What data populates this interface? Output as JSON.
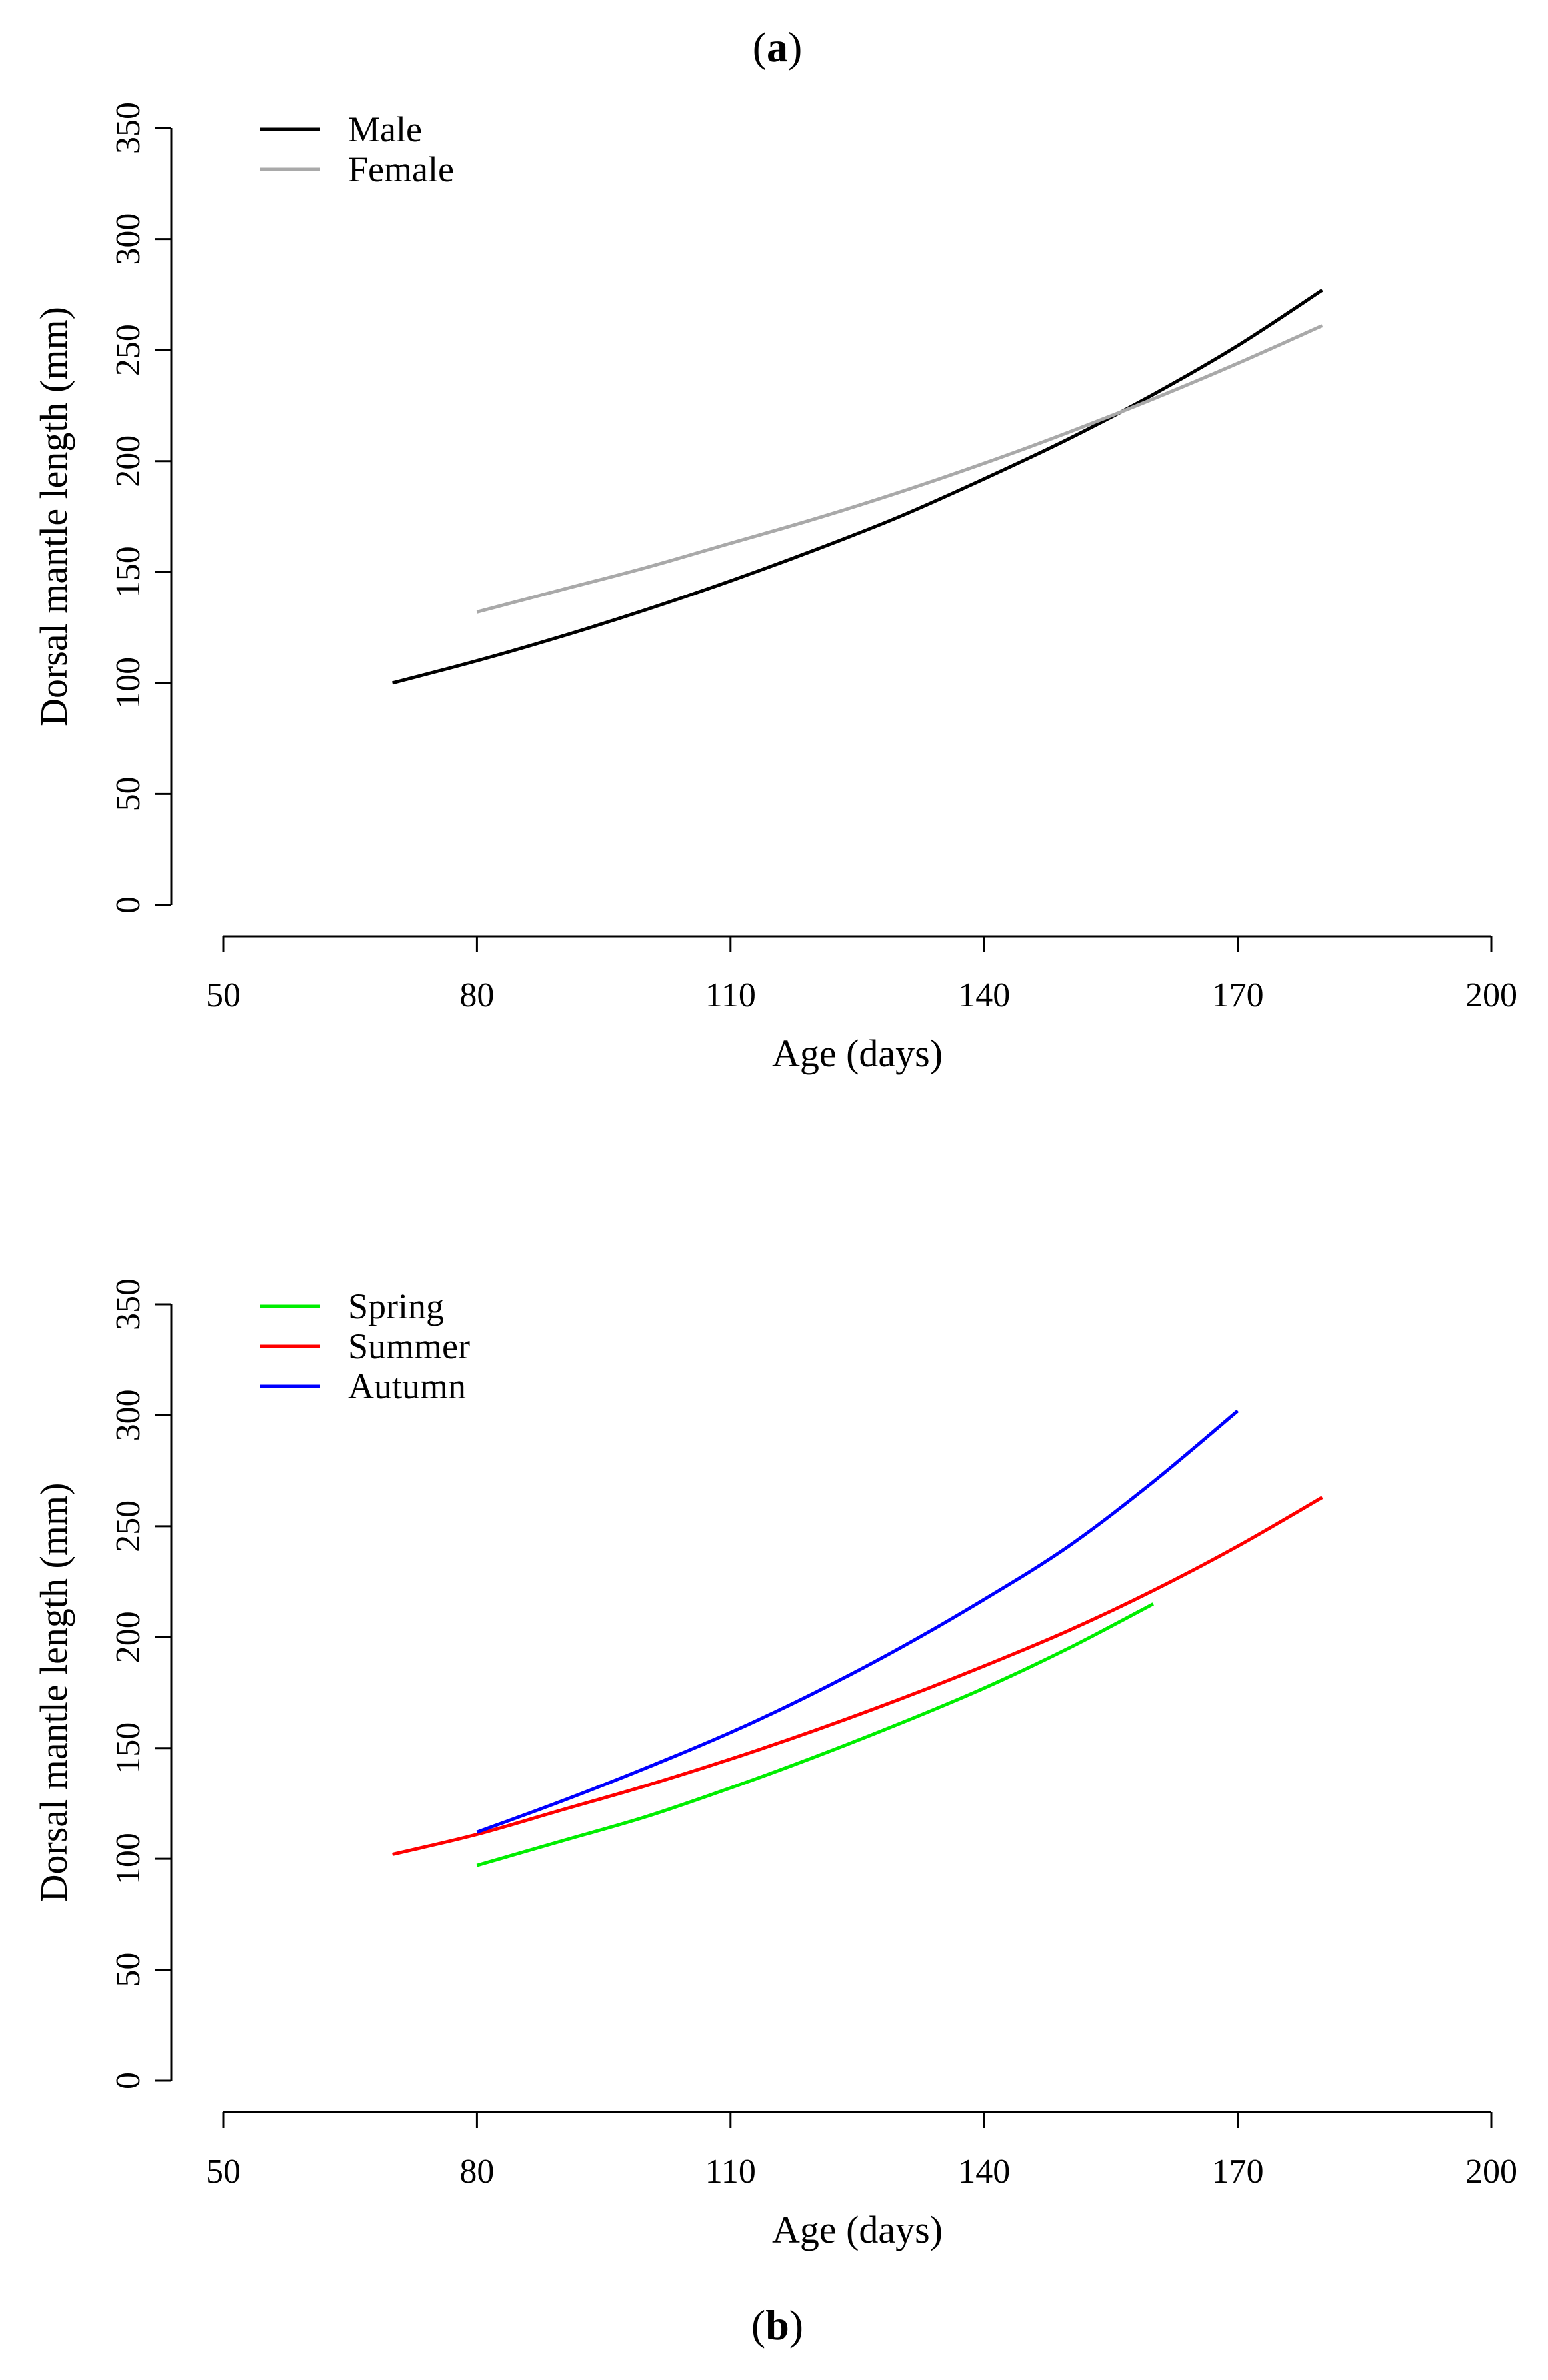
{
  "chart_data": [
    {
      "type": "line",
      "panel_label": "a",
      "title": "",
      "xlabel": "Age (days)",
      "ylabel": "Dorsal mantle length (mm)",
      "xlim": [
        50,
        200
      ],
      "ylim": [
        0,
        350
      ],
      "xticks": [
        50,
        80,
        110,
        140,
        170,
        200
      ],
      "yticks": [
        0,
        50,
        100,
        150,
        200,
        250,
        300,
        350
      ],
      "legend_position": "top-left",
      "series": [
        {
          "name": "Male",
          "color": "#000000",
          "x": [
            70,
            80,
            90,
            100,
            110,
            120,
            130,
            140,
            150,
            160,
            170,
            180
          ],
          "y": [
            100,
            110,
            121,
            133,
            146,
            160,
            175,
            192,
            210,
            230,
            252,
            277
          ]
        },
        {
          "name": "Female",
          "color": "#a9a9a9",
          "x": [
            80,
            90,
            100,
            110,
            120,
            130,
            140,
            150,
            160,
            170,
            180
          ],
          "y": [
            132,
            142,
            152,
            163,
            174,
            186,
            199,
            213,
            228,
            244,
            261
          ]
        }
      ]
    },
    {
      "type": "line",
      "panel_label": "b",
      "title": "",
      "xlabel": "Age (days)",
      "ylabel": "Dorsal mantle length (mm)",
      "xlim": [
        50,
        200
      ],
      "ylim": [
        0,
        350
      ],
      "xticks": [
        50,
        80,
        110,
        140,
        170,
        200
      ],
      "yticks": [
        0,
        50,
        100,
        150,
        200,
        250,
        300,
        350
      ],
      "legend_position": "top-left",
      "series": [
        {
          "name": "Spring",
          "color": "#00ee00",
          "x": [
            80,
            90,
            100,
            110,
            120,
            130,
            140,
            150,
            160
          ],
          "y": [
            97,
            108,
            119,
            132,
            146,
            161,
            177,
            195,
            215
          ]
        },
        {
          "name": "Summer",
          "color": "#ff0000",
          "x": [
            70,
            80,
            90,
            100,
            110,
            120,
            130,
            140,
            150,
            160,
            170,
            180
          ],
          "y": [
            102,
            111,
            122,
            133,
            145,
            158,
            172,
            187,
            203,
            221,
            241,
            263
          ]
        },
        {
          "name": "Autumn",
          "color": "#0000ff",
          "x": [
            80,
            90,
            100,
            110,
            120,
            130,
            140,
            150,
            160,
            170
          ],
          "y": [
            112,
            126,
            141,
            157,
            175,
            195,
            217,
            241,
            270,
            302
          ]
        }
      ]
    }
  ]
}
